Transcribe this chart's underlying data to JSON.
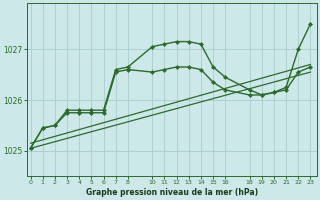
{
  "bg_color": "#cce8e8",
  "grid_color": "#aacccc",
  "xlabel": "Graphe pression niveau de la mer (hPa)",
  "ylim": [
    1024.5,
    1027.9
  ],
  "yticks": [
    1025,
    1026,
    1027
  ],
  "xlim": [
    -0.3,
    23.5
  ],
  "xtick_positions": [
    0,
    1,
    2,
    3,
    4,
    5,
    6,
    7,
    8,
    10,
    11,
    12,
    13,
    14,
    15,
    16,
    18,
    19,
    20,
    21,
    22,
    23
  ],
  "xtick_labels": [
    "0",
    "1",
    "2",
    "3",
    "4",
    "5",
    "6",
    "7",
    "8",
    "10",
    "11",
    "12",
    "13",
    "14",
    "15",
    "16",
    "18",
    "19",
    "20",
    "21",
    "22",
    "23"
  ],
  "series": [
    {
      "x": [
        0,
        23
      ],
      "y": [
        1025.05,
        1026.55
      ],
      "marker": null,
      "linewidth": 0.9,
      "color": "#2d6a2d"
    },
    {
      "x": [
        0,
        23
      ],
      "y": [
        1025.15,
        1026.7
      ],
      "marker": null,
      "linewidth": 0.9,
      "color": "#2d6a2d"
    },
    {
      "x": [
        0,
        1,
        2,
        3,
        4,
        5,
        6,
        7,
        8,
        10,
        11,
        12,
        13,
        14,
        15,
        16,
        18,
        19,
        20,
        21,
        22,
        23
      ],
      "y": [
        1025.05,
        1025.45,
        1025.5,
        1025.75,
        1025.75,
        1025.75,
        1025.75,
        1026.55,
        1026.6,
        1026.55,
        1026.6,
        1026.65,
        1026.65,
        1026.6,
        1026.35,
        1026.2,
        1026.1,
        1026.1,
        1026.15,
        1026.2,
        1026.55,
        1026.65
      ],
      "marker": "D",
      "markersize": 2.0,
      "linewidth": 1.0,
      "color": "#2d6a2d"
    },
    {
      "x": [
        0,
        1,
        2,
        3,
        4,
        5,
        6,
        7,
        8,
        10,
        11,
        12,
        13,
        14,
        15,
        16,
        18,
        19,
        20,
        21,
        22,
        23
      ],
      "y": [
        1025.05,
        1025.45,
        1025.5,
        1025.8,
        1025.8,
        1025.8,
        1025.8,
        1026.6,
        1026.65,
        1027.05,
        1027.1,
        1027.15,
        1027.15,
        1027.1,
        1026.65,
        1026.45,
        1026.2,
        1026.1,
        1026.15,
        1026.25,
        1027.0,
        1027.5
      ],
      "marker": "D",
      "markersize": 2.0,
      "linewidth": 1.0,
      "color": "#2d6a2d"
    }
  ]
}
